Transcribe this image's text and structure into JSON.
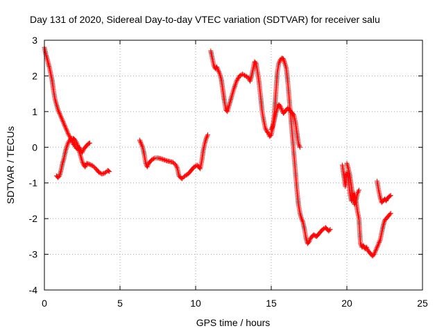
{
  "chart_data": {
    "type": "scatter",
    "title": "Day 131 of 2020, Sidereal Day-to-day VTEC variation (SDTVAR) for receiver salu",
    "xlabel": "GPS time / hours",
    "ylabel": "SDTVAR / TECUs",
    "xlim": [
      0,
      25
    ],
    "ylim": [
      -4,
      3
    ],
    "xticks": [
      "0",
      "5",
      "10",
      "15",
      "20",
      "25"
    ],
    "yticks": [
      "-4",
      "-3",
      "-2",
      "-1",
      "0",
      "1",
      "2",
      "3"
    ],
    "grid": true,
    "marker": "+",
    "series_color": "#ff0000",
    "segments": [
      {
        "name": "segment-1",
        "x": [
          0.0,
          0.1,
          0.2,
          0.35,
          0.5,
          0.6,
          0.7,
          0.8,
          0.9,
          1.0,
          1.1,
          1.2,
          1.3,
          1.4,
          1.5,
          1.6,
          1.7,
          1.8,
          1.9,
          2.0,
          2.1,
          2.2,
          2.3,
          2.4,
          2.5,
          2.6,
          2.7,
          2.8,
          2.9,
          3.0
        ],
        "y": [
          2.8,
          2.6,
          2.45,
          2.2,
          1.9,
          1.6,
          1.35,
          1.2,
          1.05,
          0.95,
          0.85,
          0.75,
          0.65,
          0.55,
          0.45,
          0.35,
          0.28,
          0.2,
          0.1,
          0.05,
          -0.02,
          -0.05,
          0.0,
          -0.08,
          -0.15,
          -0.05,
          0.0,
          0.05,
          0.1,
          0.12
        ]
      },
      {
        "name": "segment-2",
        "x": [
          0.8,
          0.9,
          1.0,
          1.1,
          1.2,
          1.3,
          1.4,
          1.5,
          1.6,
          1.7,
          1.8,
          1.9,
          2.0,
          2.1,
          2.2,
          2.3,
          2.4,
          2.5,
          2.6,
          2.7,
          2.8,
          3.0,
          3.2,
          3.4,
          3.6,
          3.8,
          4.0,
          4.2,
          4.3
        ],
        "y": [
          -0.8,
          -0.85,
          -0.8,
          -0.65,
          -0.45,
          -0.3,
          -0.1,
          0.05,
          0.15,
          0.22,
          0.25,
          0.25,
          0.22,
          0.15,
          0.05,
          -0.1,
          -0.25,
          -0.4,
          -0.5,
          -0.55,
          -0.45,
          -0.48,
          -0.52,
          -0.6,
          -0.7,
          -0.75,
          -0.72,
          -0.65,
          -0.68
        ]
      },
      {
        "name": "segment-3",
        "x": [
          6.3,
          6.4,
          6.5,
          6.6,
          6.7,
          6.8,
          6.9,
          7.0,
          7.1,
          7.3,
          7.5,
          7.7,
          7.9,
          8.1,
          8.3,
          8.5,
          8.7,
          8.8,
          8.9,
          9.0,
          9.1,
          9.3,
          9.5,
          9.7,
          9.9,
          10.1,
          10.3,
          10.4,
          10.5,
          10.6,
          10.7,
          10.8
        ],
        "y": [
          0.2,
          0.1,
          0.0,
          -0.2,
          -0.45,
          -0.55,
          -0.45,
          -0.4,
          -0.35,
          -0.3,
          -0.3,
          -0.32,
          -0.35,
          -0.38,
          -0.4,
          -0.42,
          -0.5,
          -0.6,
          -0.8,
          -0.85,
          -0.88,
          -0.8,
          -0.75,
          -0.65,
          -0.55,
          -0.5,
          -0.6,
          -0.4,
          -0.1,
          0.1,
          0.25,
          0.35
        ]
      },
      {
        "name": "segment-4",
        "x": [
          11.0,
          11.1,
          11.2,
          11.3,
          11.4,
          11.5,
          11.6,
          11.7,
          11.8,
          11.9,
          12.0,
          12.1,
          12.3,
          12.5,
          12.7,
          12.9,
          13.1,
          13.3,
          13.5,
          13.6,
          13.7,
          13.8,
          13.9,
          14.0,
          14.1,
          14.2,
          14.3,
          14.4,
          14.5,
          14.6,
          14.7,
          14.8,
          14.9,
          15.0,
          15.1,
          15.2,
          15.3,
          15.4,
          15.5,
          15.6,
          15.7,
          15.8,
          15.9,
          16.0,
          16.1,
          16.2,
          16.3,
          16.4,
          16.5,
          16.6,
          16.7,
          16.8,
          16.9,
          17.0,
          17.1,
          17.2,
          17.3,
          17.4,
          17.5,
          17.6,
          17.7,
          17.8,
          17.9,
          18.0,
          18.1,
          18.2,
          18.3,
          18.4,
          18.6,
          18.8,
          18.9
        ],
        "y": [
          2.7,
          2.5,
          2.3,
          2.2,
          2.25,
          2.15,
          2.05,
          1.9,
          1.6,
          1.3,
          1.05,
          1.0,
          1.3,
          1.6,
          1.85,
          2.0,
          2.05,
          2.0,
          1.95,
          1.85,
          2.0,
          2.2,
          2.4,
          2.35,
          2.1,
          1.8,
          1.4,
          1.0,
          0.75,
          0.55,
          0.45,
          0.4,
          0.3,
          0.35,
          0.55,
          0.9,
          1.5,
          2.1,
          2.35,
          2.45,
          2.5,
          2.48,
          2.35,
          2.2,
          1.8,
          1.3,
          0.8,
          0.3,
          -0.2,
          -0.7,
          -1.2,
          -1.6,
          -1.85,
          -2.0,
          -2.1,
          -2.3,
          -2.55,
          -2.7,
          -2.65,
          -2.55,
          -2.5,
          -2.45,
          -2.48,
          -2.5,
          -2.45,
          -2.4,
          -2.35,
          -2.3,
          -2.25,
          -2.35,
          -2.3
        ]
      },
      {
        "name": "segment-5",
        "x": [
          15.0,
          15.1,
          15.2,
          15.3,
          15.4,
          15.5,
          15.6,
          15.7,
          15.8,
          15.9,
          16.0,
          16.1,
          16.2,
          16.3,
          16.4,
          16.5,
          16.6,
          16.7,
          16.8,
          16.9
        ],
        "y": [
          0.5,
          0.6,
          0.75,
          0.95,
          1.1,
          1.2,
          1.15,
          1.05,
          0.95,
          1.0,
          1.05,
          1.1,
          1.05,
          1.0,
          0.95,
          0.9,
          0.7,
          0.4,
          0.1,
          0.0
        ]
      },
      {
        "name": "segment-6",
        "x": [
          19.7,
          19.8,
          19.9,
          20.0,
          20.1,
          20.2,
          20.3,
          20.4,
          20.5,
          20.6,
          20.7,
          20.8,
          20.9,
          21.0,
          21.1,
          21.2,
          21.3,
          21.4,
          21.5,
          21.6,
          21.7,
          21.8,
          21.9,
          22.0,
          22.1,
          22.2,
          22.3,
          22.4,
          22.5,
          22.6,
          22.7,
          22.8,
          22.9
        ],
        "y": [
          -0.5,
          -0.8,
          -1.1,
          -0.7,
          -0.9,
          -1.3,
          -1.5,
          -1.4,
          -1.3,
          -1.5,
          -1.8,
          -2.0,
          -2.7,
          -2.8,
          -2.75,
          -2.85,
          -2.8,
          -2.9,
          -2.95,
          -3.0,
          -3.05,
          -3.0,
          -2.9,
          -2.8,
          -2.7,
          -2.6,
          -2.4,
          -2.2,
          -2.05,
          -2.0,
          -1.95,
          -1.9,
          -1.85
        ]
      },
      {
        "name": "segment-7",
        "x": [
          20.0,
          20.1,
          20.2,
          20.3,
          20.4,
          20.5,
          20.6,
          20.7,
          20.8
        ],
        "y": [
          -0.45,
          -0.6,
          -0.8,
          -1.1,
          -1.4,
          -1.6,
          -1.5,
          -1.3,
          -1.2
        ]
      },
      {
        "name": "segment-8",
        "x": [
          22.0,
          22.1,
          22.2,
          22.3,
          22.4,
          22.5,
          22.6,
          22.7,
          22.8,
          22.9
        ],
        "y": [
          -0.95,
          -1.2,
          -1.4,
          -1.55,
          -1.5,
          -1.45,
          -1.5,
          -1.42,
          -1.38,
          -1.35
        ]
      }
    ]
  }
}
